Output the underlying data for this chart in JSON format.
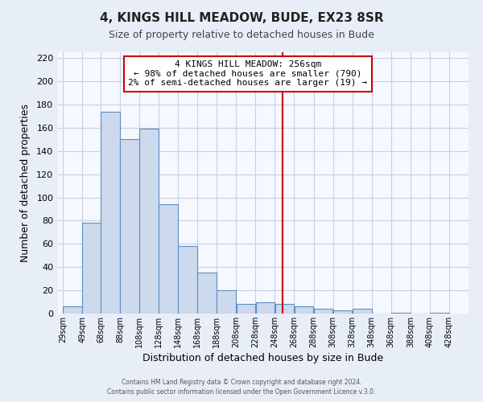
{
  "title": "4, KINGS HILL MEADOW, BUDE, EX23 8SR",
  "subtitle": "Size of property relative to detached houses in Bude",
  "xlabel": "Distribution of detached houses by size in Bude",
  "ylabel": "Number of detached properties",
  "bar_left_edges": [
    29,
    49,
    68,
    88,
    108,
    128,
    148,
    168,
    188,
    208,
    228,
    248,
    268,
    288,
    308,
    328,
    348,
    368,
    388,
    408
  ],
  "bar_heights": [
    6,
    78,
    174,
    150,
    159,
    94,
    58,
    35,
    20,
    8,
    10,
    8,
    6,
    4,
    3,
    4,
    0,
    1,
    0,
    1
  ],
  "bar_color": "#cdd9ed",
  "bar_edge_color": "#5b8ec4",
  "vline_x": 256,
  "vline_color": "#cc0000",
  "annotation_title": "4 KINGS HILL MEADOW: 256sqm",
  "annotation_line1": "← 98% of detached houses are smaller (790)",
  "annotation_line2": "2% of semi-detached houses are larger (19) →",
  "annotation_box_facecolor": "white",
  "annotation_box_edgecolor": "#cc0000",
  "xlim_left": 24,
  "xlim_right": 448,
  "ylim_top": 225,
  "yticks": [
    0,
    20,
    40,
    60,
    80,
    100,
    120,
    140,
    160,
    180,
    200,
    220
  ],
  "xtick_labels": [
    "29sqm",
    "49sqm",
    "68sqm",
    "88sqm",
    "108sqm",
    "128sqm",
    "148sqm",
    "168sqm",
    "188sqm",
    "208sqm",
    "228sqm",
    "248sqm",
    "268sqm",
    "288sqm",
    "308sqm",
    "328sqm",
    "348sqm",
    "368sqm",
    "388sqm",
    "408sqm",
    "428sqm"
  ],
  "xtick_positions": [
    29,
    49,
    68,
    88,
    108,
    128,
    148,
    168,
    188,
    208,
    228,
    248,
    268,
    288,
    308,
    328,
    348,
    368,
    388,
    408,
    428
  ],
  "footer_line1": "Contains HM Land Registry data © Crown copyright and database right 2024.",
  "footer_line2": "Contains public sector information licensed under the Open Government Licence v.3.0.",
  "fig_bg_color": "#e8eef8",
  "plot_bg_color": "#f5f8ff",
  "grid_color": "#c8d0dc",
  "title_fontsize": 11,
  "subtitle_fontsize": 9
}
